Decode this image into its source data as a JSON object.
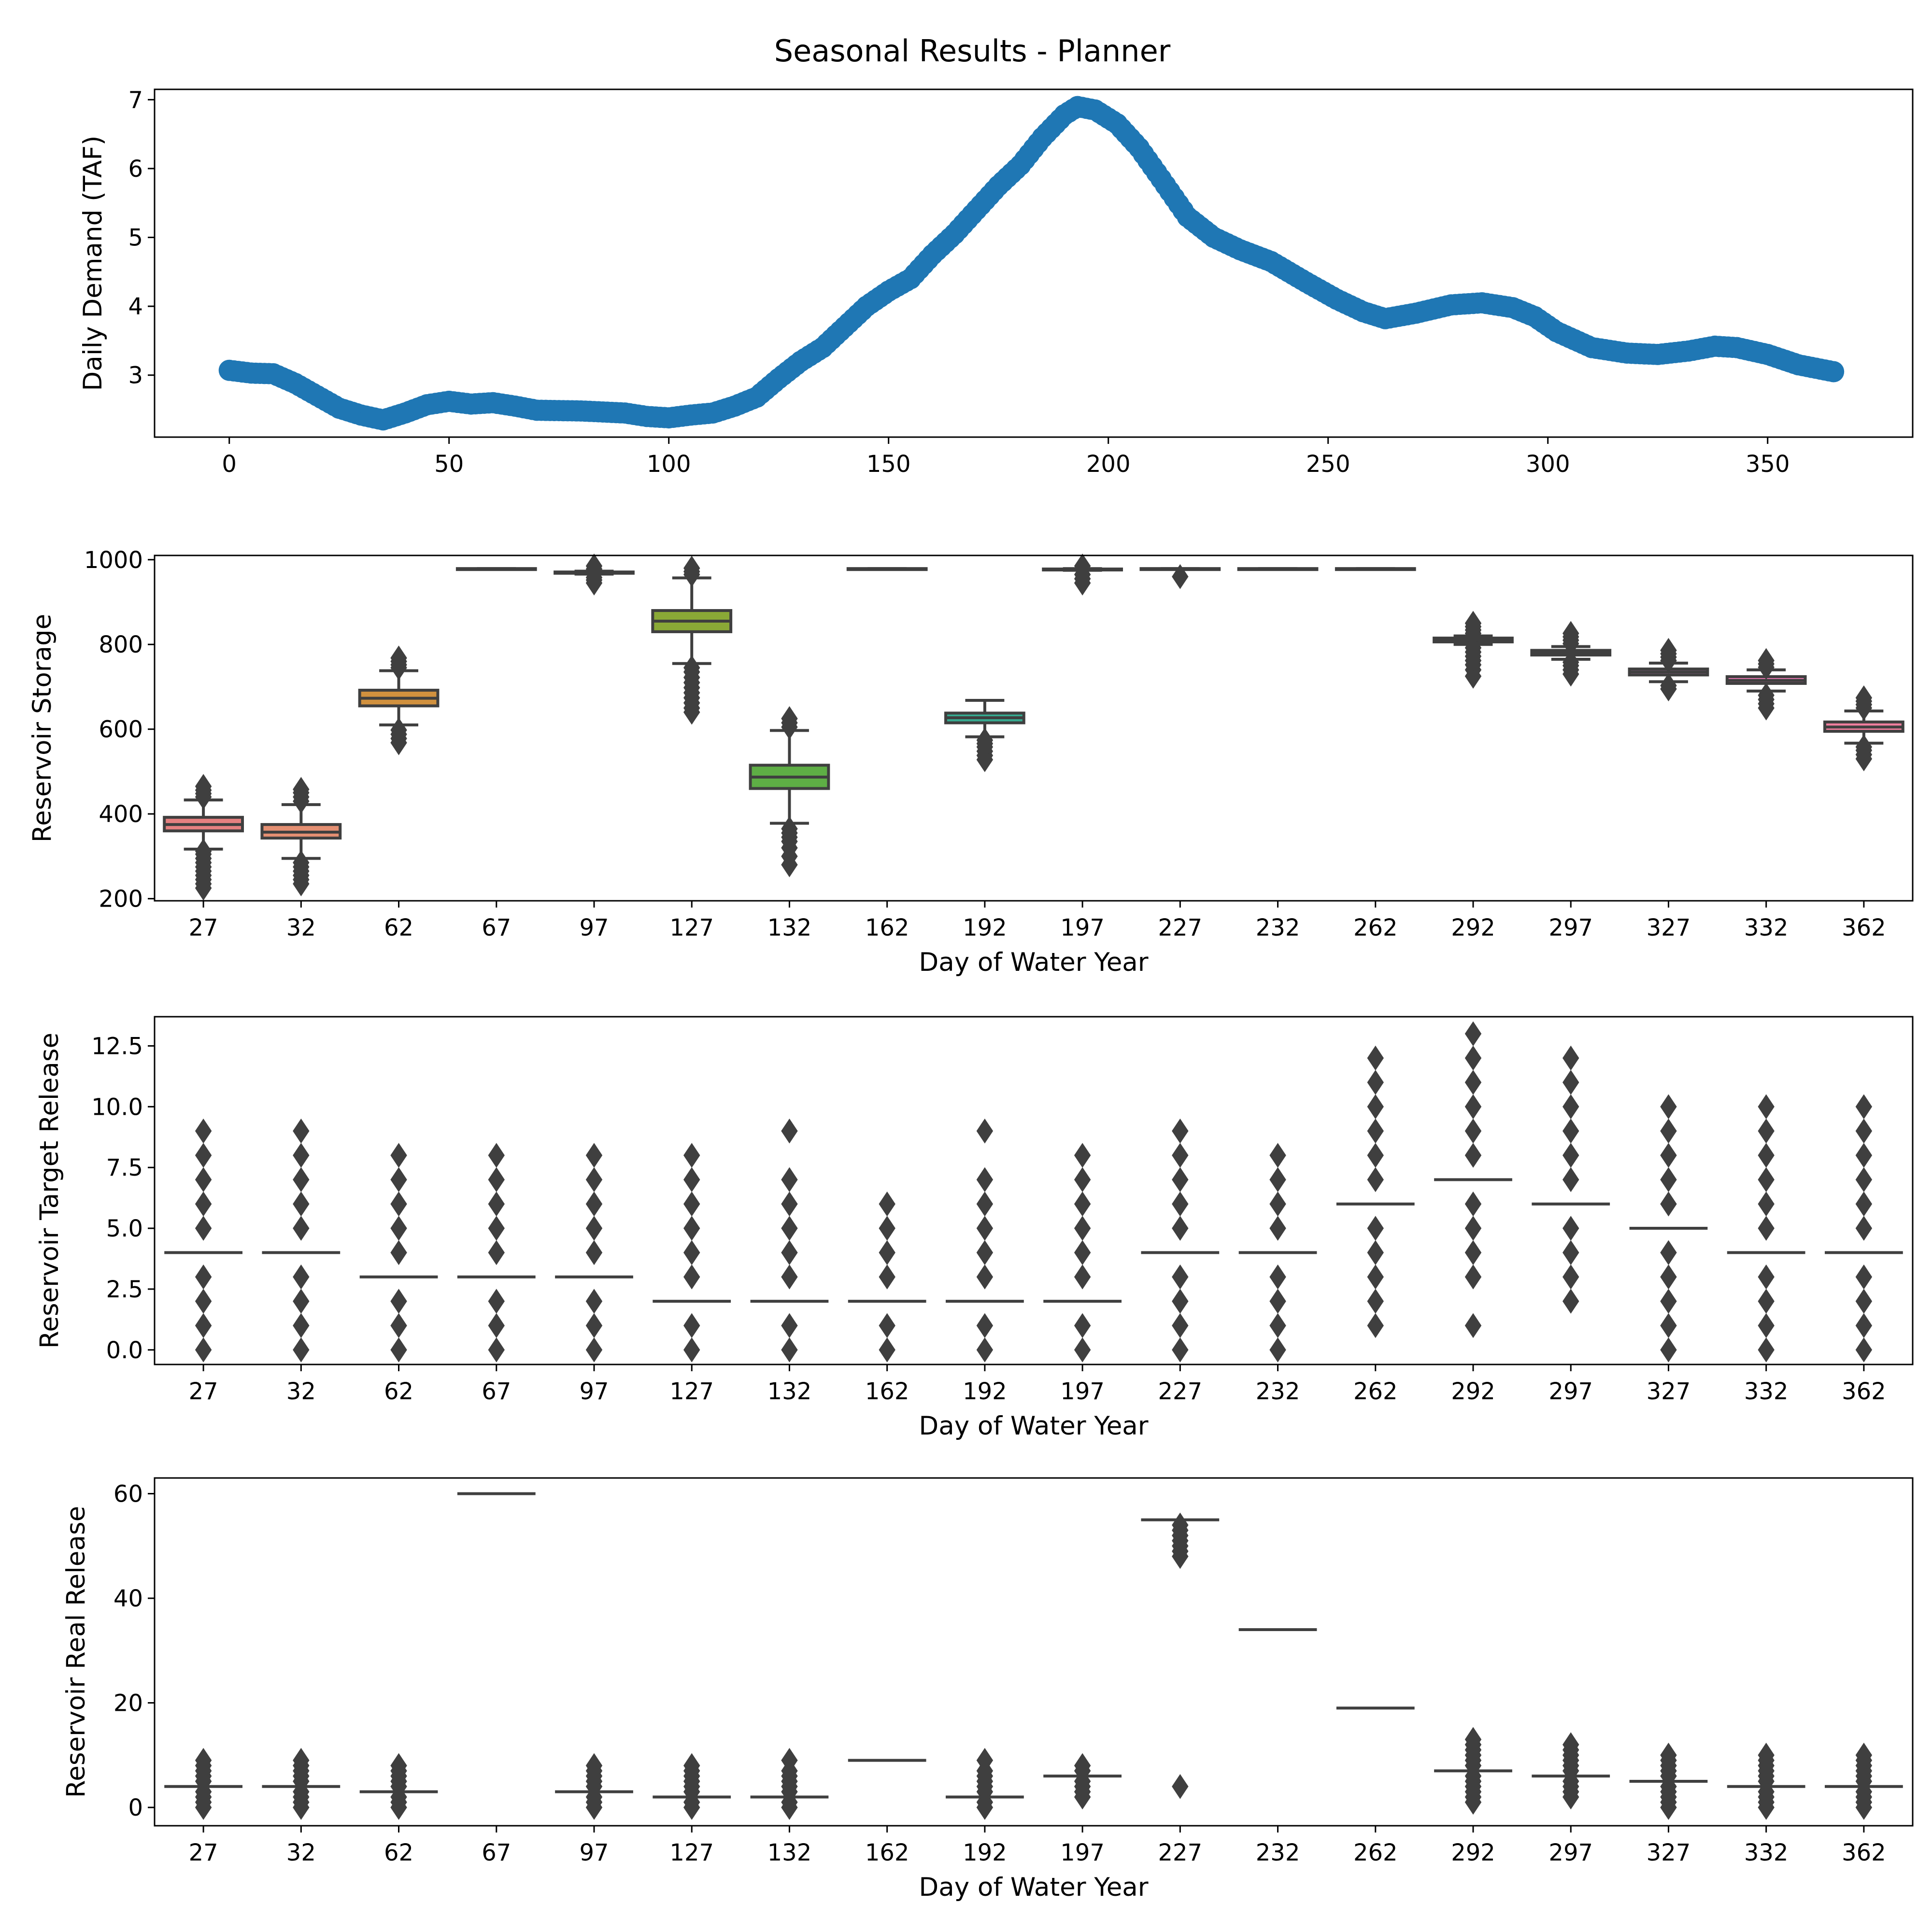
{
  "figure": {
    "title": "Seasonal Results - Planner"
  },
  "chart_data": [
    {
      "type": "scatter",
      "ylabel": "Daily Demand (TAF)",
      "xlabel": "",
      "xlim": [
        -17,
        383
      ],
      "ylim": [
        2.1,
        7.15
      ],
      "xticks": [
        0,
        50,
        100,
        150,
        200,
        250,
        300,
        350
      ],
      "yticks": [
        3,
        4,
        5,
        6,
        7
      ],
      "color": "#1f77b4",
      "keypoints": [
        [
          0,
          3.07
        ],
        [
          5,
          3.03
        ],
        [
          10,
          3.02
        ],
        [
          15,
          2.88
        ],
        [
          20,
          2.7
        ],
        [
          25,
          2.52
        ],
        [
          30,
          2.42
        ],
        [
          35,
          2.35
        ],
        [
          40,
          2.45
        ],
        [
          45,
          2.57
        ],
        [
          50,
          2.62
        ],
        [
          55,
          2.58
        ],
        [
          60,
          2.6
        ],
        [
          65,
          2.55
        ],
        [
          70,
          2.49
        ],
        [
          80,
          2.48
        ],
        [
          90,
          2.45
        ],
        [
          95,
          2.4
        ],
        [
          100,
          2.38
        ],
        [
          105,
          2.42
        ],
        [
          110,
          2.45
        ],
        [
          115,
          2.55
        ],
        [
          120,
          2.68
        ],
        [
          125,
          2.95
        ],
        [
          130,
          3.2
        ],
        [
          135,
          3.4
        ],
        [
          140,
          3.7
        ],
        [
          145,
          4.0
        ],
        [
          150,
          4.22
        ],
        [
          155,
          4.4
        ],
        [
          160,
          4.75
        ],
        [
          165,
          5.05
        ],
        [
          170,
          5.4
        ],
        [
          175,
          5.75
        ],
        [
          180,
          6.05
        ],
        [
          185,
          6.45
        ],
        [
          190,
          6.78
        ],
        [
          193,
          6.9
        ],
        [
          197,
          6.85
        ],
        [
          202,
          6.65
        ],
        [
          207,
          6.3
        ],
        [
          212,
          5.85
        ],
        [
          218,
          5.3
        ],
        [
          224,
          5.0
        ],
        [
          230,
          4.82
        ],
        [
          237,
          4.65
        ],
        [
          245,
          4.35
        ],
        [
          252,
          4.1
        ],
        [
          258,
          3.92
        ],
        [
          263,
          3.82
        ],
        [
          270,
          3.9
        ],
        [
          278,
          4.02
        ],
        [
          285,
          4.05
        ],
        [
          292,
          3.98
        ],
        [
          297,
          3.85
        ],
        [
          302,
          3.63
        ],
        [
          310,
          3.4
        ],
        [
          318,
          3.32
        ],
        [
          325,
          3.3
        ],
        [
          332,
          3.35
        ],
        [
          338,
          3.42
        ],
        [
          343,
          3.4
        ],
        [
          350,
          3.3
        ],
        [
          357,
          3.15
        ],
        [
          365,
          3.05
        ]
      ]
    },
    {
      "type": "box",
      "ylabel": "Reservoir Storage",
      "xlabel": "Day of Water Year",
      "ylim": [
        195,
        1010
      ],
      "yticks": [
        200,
        400,
        600,
        800,
        1000
      ],
      "categories": [
        "27",
        "32",
        "62",
        "67",
        "97",
        "127",
        "132",
        "162",
        "192",
        "197",
        "227",
        "232",
        "262",
        "292",
        "297",
        "327",
        "332",
        "362"
      ],
      "boxes": [
        {
          "q1": 360,
          "median": 375,
          "q3": 392,
          "wlo": 317,
          "whi": 433,
          "fliers": [
            225,
            235,
            245,
            255,
            265,
            275,
            285,
            295,
            305,
            312,
            440,
            448,
            456,
            465
          ]
        },
        {
          "q1": 343,
          "median": 357,
          "q3": 375,
          "wlo": 295,
          "whi": 422,
          "fliers": [
            235,
            245,
            255,
            265,
            275,
            285,
            430,
            440,
            450,
            458
          ]
        },
        {
          "q1": 655,
          "median": 673,
          "q3": 692,
          "wlo": 610,
          "whi": 738,
          "fliers": [
            568,
            578,
            588,
            598,
            745,
            752,
            760,
            768
          ]
        },
        {
          "q1": 977,
          "median": 978,
          "q3": 979,
          "wlo": 977,
          "whi": 979,
          "fliers": []
        },
        {
          "q1": 968,
          "median": 969,
          "q3": 971,
          "wlo": 966,
          "whi": 973,
          "fliers": [
            945,
            952,
            958,
            978,
            985
          ]
        },
        {
          "q1": 830,
          "median": 855,
          "q3": 880,
          "wlo": 755,
          "whi": 957,
          "fliers": [
            640,
            650,
            662,
            674,
            686,
            698,
            710,
            722,
            735,
            745,
            965,
            972,
            980
          ]
        },
        {
          "q1": 460,
          "median": 487,
          "q3": 515,
          "wlo": 378,
          "whi": 597,
          "fliers": [
            280,
            300,
            320,
            335,
            345,
            355,
            365,
            605,
            615,
            625
          ]
        },
        {
          "q1": 977,
          "median": 978,
          "q3": 979,
          "wlo": 977,
          "whi": 979,
          "fliers": []
        },
        {
          "q1": 615,
          "median": 627,
          "q3": 638,
          "wlo": 582,
          "whi": 668,
          "fliers": [
            528,
            538,
            548,
            558,
            566,
            574
          ]
        },
        {
          "q1": 976,
          "median": 977,
          "q3": 978,
          "wlo": 975,
          "whi": 979,
          "fliers": [
            945,
            955,
            965,
            985
          ]
        },
        {
          "q1": 977,
          "median": 978,
          "q3": 979,
          "wlo": 977,
          "whi": 979,
          "fliers": [
            960
          ]
        },
        {
          "q1": 977,
          "median": 978,
          "q3": 979,
          "wlo": 977,
          "whi": 979,
          "fliers": []
        },
        {
          "q1": 977,
          "median": 978,
          "q3": 979,
          "wlo": 977,
          "whi": 979,
          "fliers": []
        },
        {
          "q1": 806,
          "median": 811,
          "q3": 815,
          "wlo": 800,
          "whi": 820,
          "fliers": [
            725,
            740,
            752,
            762,
            772,
            782,
            792,
            826,
            834,
            842,
            850
          ]
        },
        {
          "q1": 775,
          "median": 780,
          "q3": 786,
          "wlo": 765,
          "whi": 795,
          "fliers": [
            730,
            740,
            750,
            758,
            802,
            810,
            818,
            826
          ]
        },
        {
          "q1": 728,
          "median": 735,
          "q3": 742,
          "wlo": 712,
          "whi": 756,
          "fliers": [
            695,
            703,
            762,
            770,
            778,
            786
          ]
        },
        {
          "q1": 708,
          "median": 715,
          "q3": 724,
          "wlo": 690,
          "whi": 740,
          "fliers": [
            650,
            660,
            670,
            680,
            746,
            754,
            762
          ]
        },
        {
          "q1": 595,
          "median": 605,
          "q3": 617,
          "wlo": 567,
          "whi": 643,
          "fliers": [
            530,
            540,
            550,
            558,
            650,
            658,
            666,
            674
          ]
        }
      ],
      "palette": [
        "#e58080",
        "#e48f72",
        "#d1913e",
        "#b49a31",
        "#9da431",
        "#8aa936",
        "#5eae45",
        "#35ae70",
        "#36a98f",
        "#38a59e",
        "#3aa4b0",
        "#40a2c8",
        "#5a9ee5",
        "#979be3",
        "#bd93e8",
        "#de83d8",
        "#f07ab8",
        "#f07e9e"
      ]
    },
    {
      "type": "box",
      "ylabel": "Reservoir Target Release",
      "xlabel": "Day of Water Year",
      "ylim": [
        -0.6,
        13.7
      ],
      "yticks": [
        0.0,
        2.5,
        5.0,
        7.5,
        10.0,
        12.5
      ],
      "yticklabels": [
        "0.0",
        "2.5",
        "5.0",
        "7.5",
        "10.0",
        "12.5"
      ],
      "categories": [
        "27",
        "32",
        "62",
        "67",
        "97",
        "127",
        "132",
        "162",
        "192",
        "197",
        "227",
        "232",
        "262",
        "292",
        "297",
        "327",
        "332",
        "362"
      ],
      "medians": [
        4,
        4,
        3,
        3,
        3,
        2,
        2,
        2,
        2,
        2,
        4,
        4,
        6,
        7,
        6,
        5,
        4,
        4
      ],
      "fliers": [
        [
          0,
          1,
          2,
          3,
          5,
          6,
          7,
          8,
          9
        ],
        [
          0,
          1,
          2,
          3,
          5,
          6,
          7,
          8,
          9
        ],
        [
          0,
          1,
          2,
          4,
          5,
          6,
          7,
          8
        ],
        [
          0,
          1,
          2,
          4,
          5,
          6,
          7,
          8
        ],
        [
          0,
          1,
          2,
          4,
          5,
          6,
          7,
          8
        ],
        [
          0,
          1,
          3,
          4,
          5,
          6,
          7,
          8
        ],
        [
          0,
          1,
          3,
          4,
          5,
          6,
          7,
          9
        ],
        [
          0,
          1,
          3,
          4,
          5,
          6
        ],
        [
          0,
          1,
          3,
          4,
          5,
          6,
          7,
          9
        ],
        [
          0,
          1,
          3,
          4,
          5,
          6,
          7,
          8
        ],
        [
          0,
          1,
          2,
          3,
          5,
          6,
          7,
          8,
          9
        ],
        [
          0,
          1,
          2,
          3,
          5,
          6,
          7,
          8
        ],
        [
          1,
          2,
          3,
          4,
          5,
          7,
          8,
          9,
          10,
          11,
          12
        ],
        [
          1,
          3,
          4,
          5,
          6,
          8,
          9,
          10,
          11,
          12,
          13
        ],
        [
          2,
          3,
          4,
          5,
          7,
          8,
          9,
          10,
          11,
          12
        ],
        [
          0,
          1,
          2,
          3,
          4,
          6,
          7,
          8,
          9,
          10
        ],
        [
          0,
          1,
          2,
          3,
          5,
          6,
          7,
          8,
          9,
          10
        ],
        [
          0,
          1,
          2,
          3,
          5,
          6,
          7,
          8,
          9,
          10
        ]
      ]
    },
    {
      "type": "box",
      "ylabel": "Reservoir Real Release",
      "xlabel": "Day of Water Year",
      "ylim": [
        -3.5,
        63
      ],
      "yticks": [
        0,
        20,
        40,
        60
      ],
      "categories": [
        "27",
        "32",
        "62",
        "67",
        "97",
        "127",
        "132",
        "162",
        "192",
        "197",
        "227",
        "232",
        "262",
        "292",
        "297",
        "327",
        "332",
        "362"
      ],
      "medians": [
        4,
        4,
        3,
        60,
        3,
        2,
        2,
        9,
        2,
        6,
        55,
        34,
        19,
        7,
        6,
        5,
        4,
        4
      ],
      "fliers": [
        [
          0,
          1,
          2,
          3,
          5,
          6,
          7,
          8,
          9
        ],
        [
          0,
          1,
          2,
          3,
          5,
          6,
          7,
          8,
          9
        ],
        [
          0,
          1,
          2,
          4,
          5,
          6,
          7,
          8
        ],
        [],
        [
          0,
          1,
          2,
          4,
          5,
          6,
          7,
          8
        ],
        [
          0,
          1,
          3,
          4,
          5,
          6,
          7,
          8
        ],
        [
          0,
          1,
          3,
          4,
          5,
          6,
          7,
          9
        ],
        [],
        [
          0,
          1,
          3,
          4,
          5,
          6,
          7,
          9
        ],
        [
          2,
          3,
          4,
          5,
          7,
          8
        ],
        [
          4,
          48,
          49,
          50,
          51,
          52,
          53,
          54
        ],
        [],
        [],
        [
          1,
          2,
          3,
          4,
          5,
          6,
          8,
          9,
          10,
          11,
          12,
          13
        ],
        [
          2,
          3,
          4,
          5,
          7,
          8,
          9,
          10,
          11,
          12
        ],
        [
          0,
          1,
          2,
          3,
          4,
          6,
          7,
          8,
          9,
          10
        ],
        [
          0,
          1,
          2,
          3,
          5,
          6,
          7,
          8,
          9,
          10
        ],
        [
          0,
          1,
          2,
          3,
          5,
          6,
          7,
          8,
          9,
          10
        ]
      ]
    }
  ]
}
